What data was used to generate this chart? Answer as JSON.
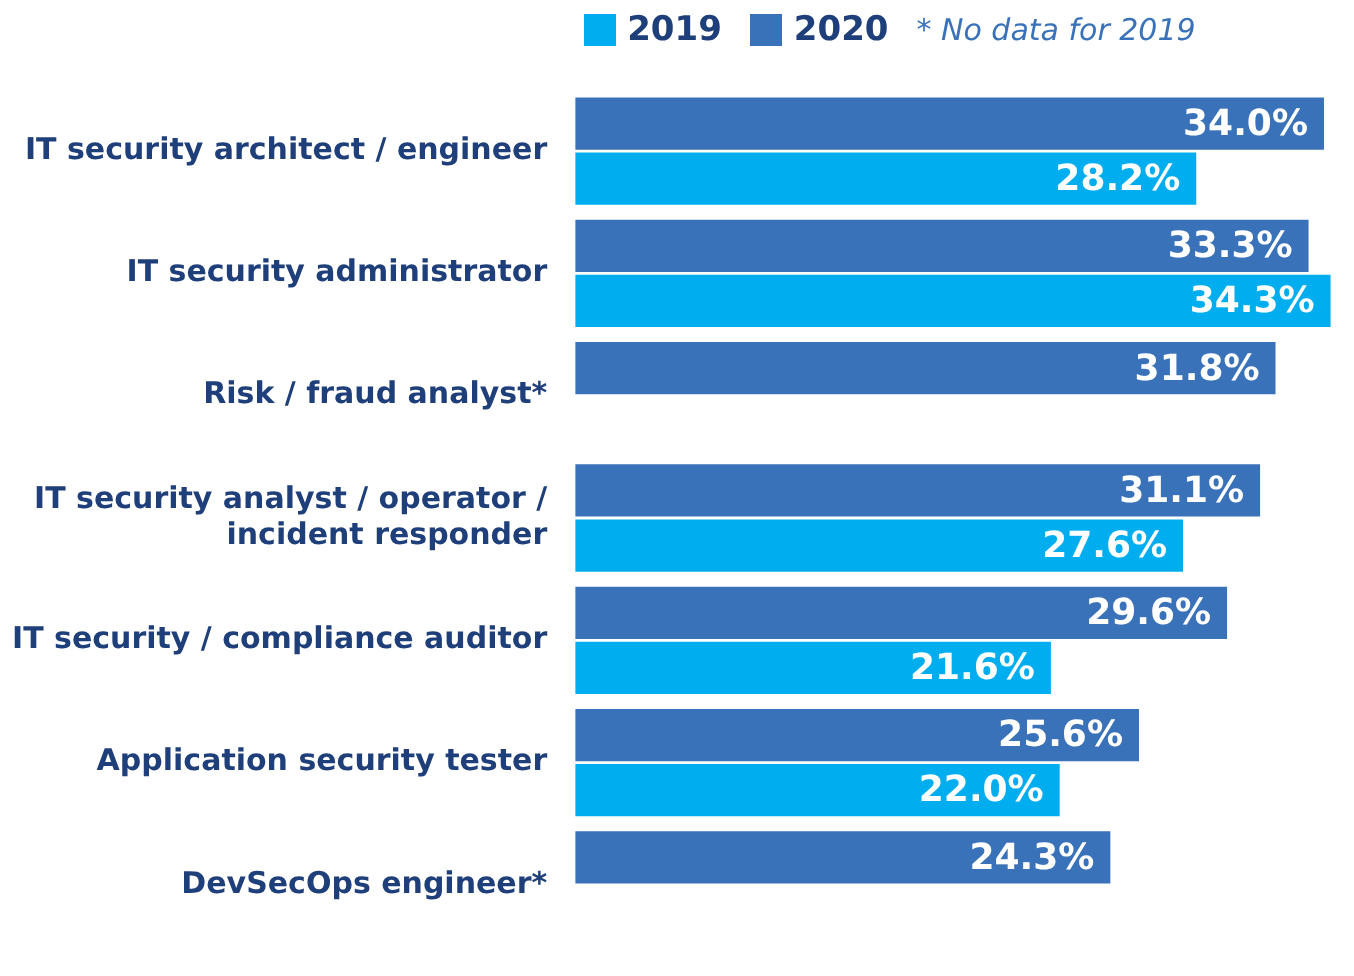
{
  "chart_data": {
    "type": "bar",
    "orientation": "horizontal",
    "categories": [
      "IT security architect / engineer",
      "IT security administrator",
      "Risk / fraud analyst*",
      "IT security analyst / operator / incident responder",
      "IT security / compliance auditor",
      "Application security tester",
      "DevSecOps engineer*"
    ],
    "series": [
      {
        "name": "2019",
        "color": "#00aeef",
        "values": [
          28.2,
          34.3,
          null,
          27.6,
          21.6,
          22.0,
          null
        ],
        "value_labels": [
          "28.2%",
          "34.3%",
          null,
          "27.6%",
          "21.6%",
          "22.0%",
          null
        ]
      },
      {
        "name": "2020",
        "color": "#3a72b9",
        "values": [
          34.0,
          33.3,
          31.8,
          31.1,
          29.6,
          25.6,
          24.3
        ],
        "value_labels": [
          "34.0%",
          "33.3%",
          "31.8%",
          "31.1%",
          "29.6%",
          "25.6%",
          "24.3%"
        ]
      }
    ],
    "annotations": [
      "* No data for 2019"
    ],
    "legend": "top left",
    "grid": false,
    "tick_labels": "y"
  }
}
